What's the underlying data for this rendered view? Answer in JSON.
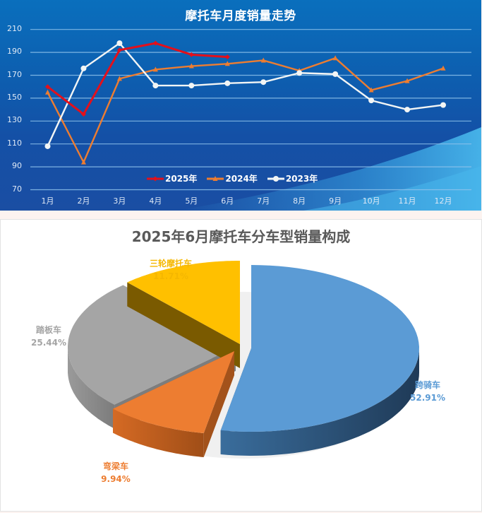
{
  "line_chart": {
    "title": "摩托车月度销量走势",
    "colors": {
      "2025年": "#e3101b",
      "2024年": "#ed7d31",
      "2023年": "#f2f5f5",
      "grid": "#8fc3ec"
    }
  },
  "pie_chart": {
    "title": "2025年6月摩托车分车型销量构成",
    "labels": [
      {
        "name": "跨骑车",
        "value": "52.91%",
        "color": "#5b9bd5"
      },
      {
        "name": "弯梁车",
        "value": "9.94%",
        "color": "#ed7d31"
      },
      {
        "name": "踏板车",
        "value": "25.44%",
        "color": "#a5a5a5"
      },
      {
        "name": "三轮摩托车",
        "value": "11.71%",
        "color": "#f5b700"
      }
    ]
  },
  "chart_data": [
    {
      "type": "line",
      "title": "摩托车月度销量走势",
      "categories": [
        "1月",
        "2月",
        "3月",
        "4月",
        "5月",
        "6月",
        "7月",
        "8月",
        "9月",
        "10月",
        "11月",
        "12月"
      ],
      "series": [
        {
          "name": "2025年",
          "marker": "diamond",
          "values": [
            160,
            136,
            192,
            198,
            188,
            186,
            null,
            null,
            null,
            null,
            null,
            null
          ]
        },
        {
          "name": "2024年",
          "marker": "triangle",
          "values": [
            155,
            94,
            167,
            175,
            178,
            180,
            183,
            174,
            185,
            157,
            165,
            176
          ]
        },
        {
          "name": "2023年",
          "marker": "circle",
          "values": [
            108,
            176,
            198,
            161,
            161,
            163,
            164,
            172,
            171,
            148,
            140,
            144
          ]
        }
      ],
      "yticks": [
        70,
        90,
        110,
        130,
        150,
        170,
        190,
        210
      ],
      "ylim": [
        70,
        210
      ],
      "xlabel": "",
      "ylabel": "",
      "grid": true,
      "legend_position": "bottom-inside"
    },
    {
      "type": "pie",
      "title": "2025年6月摩托车分车型销量构成",
      "categories": [
        "跨骑车",
        "弯梁车",
        "踏板车",
        "三轮摩托车"
      ],
      "values": [
        52.91,
        9.94,
        25.44,
        11.71
      ],
      "colors": [
        "#5b9bd5",
        "#ed7d31",
        "#a5a5a5",
        "#ffc000"
      ],
      "style": "3d-exploded"
    }
  ]
}
